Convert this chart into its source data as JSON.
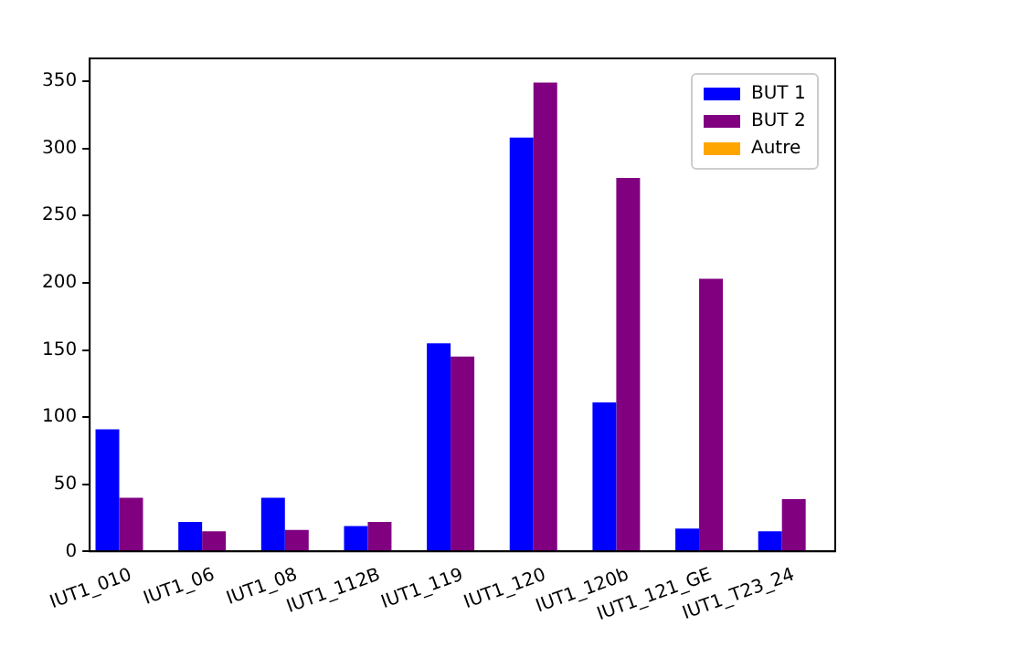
{
  "chart_data": {
    "type": "bar",
    "categories": [
      "IUT1_010",
      "IUT1_06",
      "IUT1_08",
      "IUT1_112B",
      "IUT1_119",
      "IUT1_120",
      "IUT1_120b",
      "IUT1_121_GE",
      "IUT1_T23_24"
    ],
    "series": [
      {
        "name": "BUT 1",
        "color": "#0000ff",
        "values": [
          91,
          22,
          40,
          19,
          155,
          308,
          111,
          17,
          15
        ]
      },
      {
        "name": "BUT 2",
        "color": "#800080",
        "values": [
          40,
          15,
          16,
          22,
          145,
          349,
          278,
          203,
          39
        ]
      },
      {
        "name": "Autre",
        "color": "#ffa500",
        "values": [
          0,
          0,
          0,
          0,
          0,
          0,
          0,
          0,
          0
        ]
      }
    ],
    "ylim": [
      0,
      367
    ],
    "yticks": [
      0,
      50,
      100,
      150,
      200,
      250,
      300,
      350
    ],
    "grid": false,
    "legend": "top right"
  }
}
